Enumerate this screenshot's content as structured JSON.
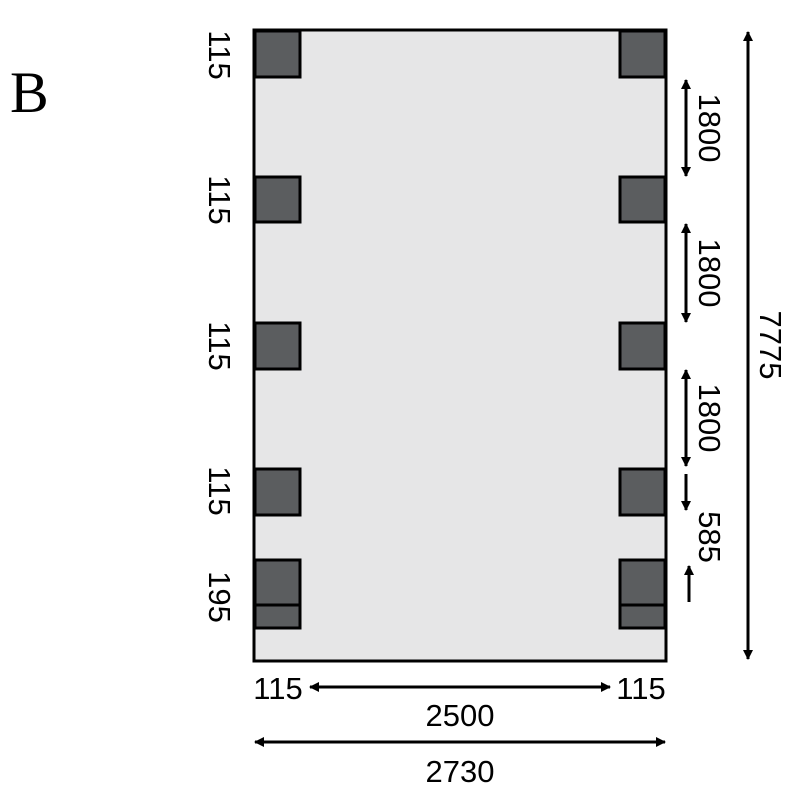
{
  "panel_label": "B",
  "colors": {
    "floor": "#e6e6e7",
    "post": "#5b5d5f",
    "outline": "#000000"
  },
  "left_dimensions": [
    "115",
    "115",
    "115",
    "115",
    "195"
  ],
  "right_dimensions": [
    "1800",
    "1800",
    "1800",
    "585"
  ],
  "overall_length": "7775",
  "bottom": {
    "left_offset": "115",
    "inner_width": "2500",
    "right_offset": "115",
    "overall_width": "2730"
  }
}
